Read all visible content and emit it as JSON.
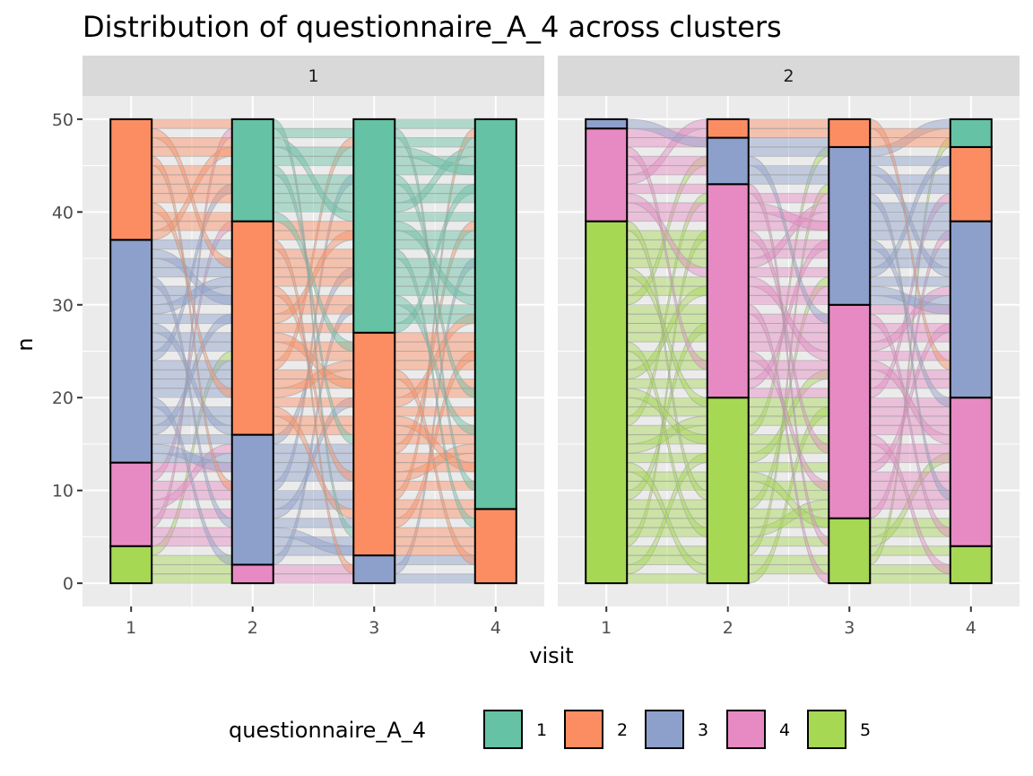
{
  "chart_data": {
    "type": "alluvial",
    "title": "Distribution of questionnaire_A_4 across clusters",
    "xlabel": "visit",
    "ylabel": "n",
    "x_categories": [
      "1",
      "2",
      "3",
      "4"
    ],
    "ylim": [
      -2.5,
      52.5
    ],
    "y_ticks": [
      0,
      10,
      20,
      30,
      40,
      50
    ],
    "y_tick_labels": [
      "0",
      "10",
      "20",
      "30",
      "40",
      "50"
    ],
    "grid": true,
    "legend": {
      "title": "questionnaire_A_4",
      "position": "bottom",
      "levels": [
        "1",
        "2",
        "3",
        "4",
        "5"
      ],
      "colors": [
        "#66C2A5",
        "#FC8D62",
        "#8DA0CB",
        "#E78AC3",
        "#A6D854"
      ]
    },
    "panel_background": "#EBEBEB",
    "strip_background": "#D9D9D9",
    "panels": [
      {
        "strip": "1",
        "stacks": [
          [
            {
              "level": "5",
              "n": 4
            },
            {
              "level": "4",
              "n": 9
            },
            {
              "level": "3",
              "n": 24
            },
            {
              "level": "2",
              "n": 13
            }
          ],
          [
            {
              "level": "4",
              "n": 2
            },
            {
              "level": "3",
              "n": 14
            },
            {
              "level": "2",
              "n": 23
            },
            {
              "level": "1",
              "n": 11
            }
          ],
          [
            {
              "level": "3",
              "n": 3
            },
            {
              "level": "2",
              "n": 24
            },
            {
              "level": "1",
              "n": 23
            }
          ],
          [
            {
              "level": "2",
              "n": 8
            },
            {
              "level": "1",
              "n": 42
            }
          ]
        ]
      },
      {
        "strip": "2",
        "stacks": [
          [
            {
              "level": "5",
              "n": 39
            },
            {
              "level": "4",
              "n": 10
            },
            {
              "level": "3",
              "n": 1
            }
          ],
          [
            {
              "level": "5",
              "n": 20
            },
            {
              "level": "4",
              "n": 23
            },
            {
              "level": "3",
              "n": 5
            },
            {
              "level": "2",
              "n": 2
            }
          ],
          [
            {
              "level": "5",
              "n": 7
            },
            {
              "level": "4",
              "n": 23
            },
            {
              "level": "3",
              "n": 17
            },
            {
              "level": "2",
              "n": 3
            }
          ],
          [
            {
              "level": "5",
              "n": 4
            },
            {
              "level": "4",
              "n": 16
            },
            {
              "level": "3",
              "n": 19
            },
            {
              "level": "2",
              "n": 8
            },
            {
              "level": "1",
              "n": 3
            }
          ]
        ]
      }
    ]
  }
}
